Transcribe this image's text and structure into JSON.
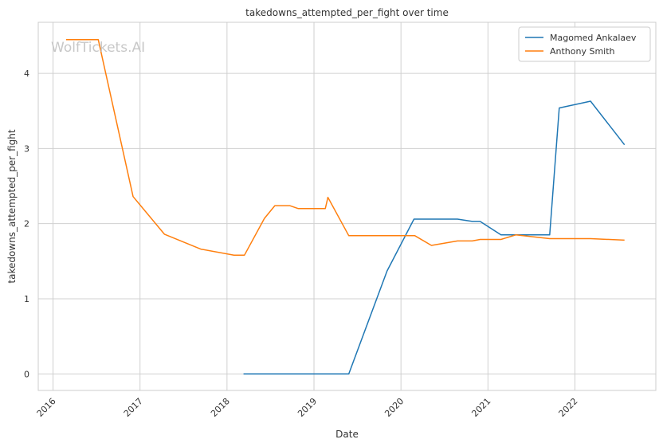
{
  "chart_data": {
    "type": "line",
    "title": "takedowns_attempted_per_fight over time",
    "xlabel": "Date",
    "ylabel": "takedowns_attempted_per_fight",
    "watermark": "WolfTickets.AI",
    "x_ticks": [
      "2016",
      "2017",
      "2018",
      "2019",
      "2020",
      "2021",
      "2022"
    ],
    "y_ticks": [
      "0",
      "1",
      "2",
      "3",
      "4"
    ],
    "xlim": [
      2015.83,
      2022.93
    ],
    "ylim": [
      -0.22,
      4.68
    ],
    "grid": true,
    "legend_position": "top-right",
    "series": [
      {
        "name": "Magomed Ankalaev",
        "color": "#1f77b4",
        "points": [
          [
            2018.19,
            0.0
          ],
          [
            2019.4,
            0.0
          ],
          [
            2019.84,
            1.37
          ],
          [
            2020.15,
            2.06
          ],
          [
            2020.65,
            2.06
          ],
          [
            2020.82,
            2.03
          ],
          [
            2020.91,
            2.03
          ],
          [
            2021.15,
            1.85
          ],
          [
            2021.71,
            1.85
          ],
          [
            2021.82,
            3.54
          ],
          [
            2022.18,
            3.63
          ],
          [
            2022.57,
            3.05
          ]
        ]
      },
      {
        "name": "Anthony Smith",
        "color": "#ff7f0e",
        "points": [
          [
            2016.15,
            4.45
          ],
          [
            2016.52,
            4.45
          ],
          [
            2016.92,
            2.36
          ],
          [
            2017.28,
            1.86
          ],
          [
            2017.7,
            1.66
          ],
          [
            2018.08,
            1.58
          ],
          [
            2018.2,
            1.58
          ],
          [
            2018.43,
            2.07
          ],
          [
            2018.55,
            2.24
          ],
          [
            2018.72,
            2.24
          ],
          [
            2018.82,
            2.2
          ],
          [
            2019.13,
            2.2
          ],
          [
            2019.16,
            2.35
          ],
          [
            2019.4,
            1.84
          ],
          [
            2020.16,
            1.84
          ],
          [
            2020.35,
            1.71
          ],
          [
            2020.65,
            1.77
          ],
          [
            2020.82,
            1.77
          ],
          [
            2020.91,
            1.79
          ],
          [
            2021.15,
            1.79
          ],
          [
            2021.32,
            1.85
          ],
          [
            2021.71,
            1.8
          ],
          [
            2022.18,
            1.8
          ],
          [
            2022.57,
            1.78
          ]
        ]
      }
    ]
  }
}
